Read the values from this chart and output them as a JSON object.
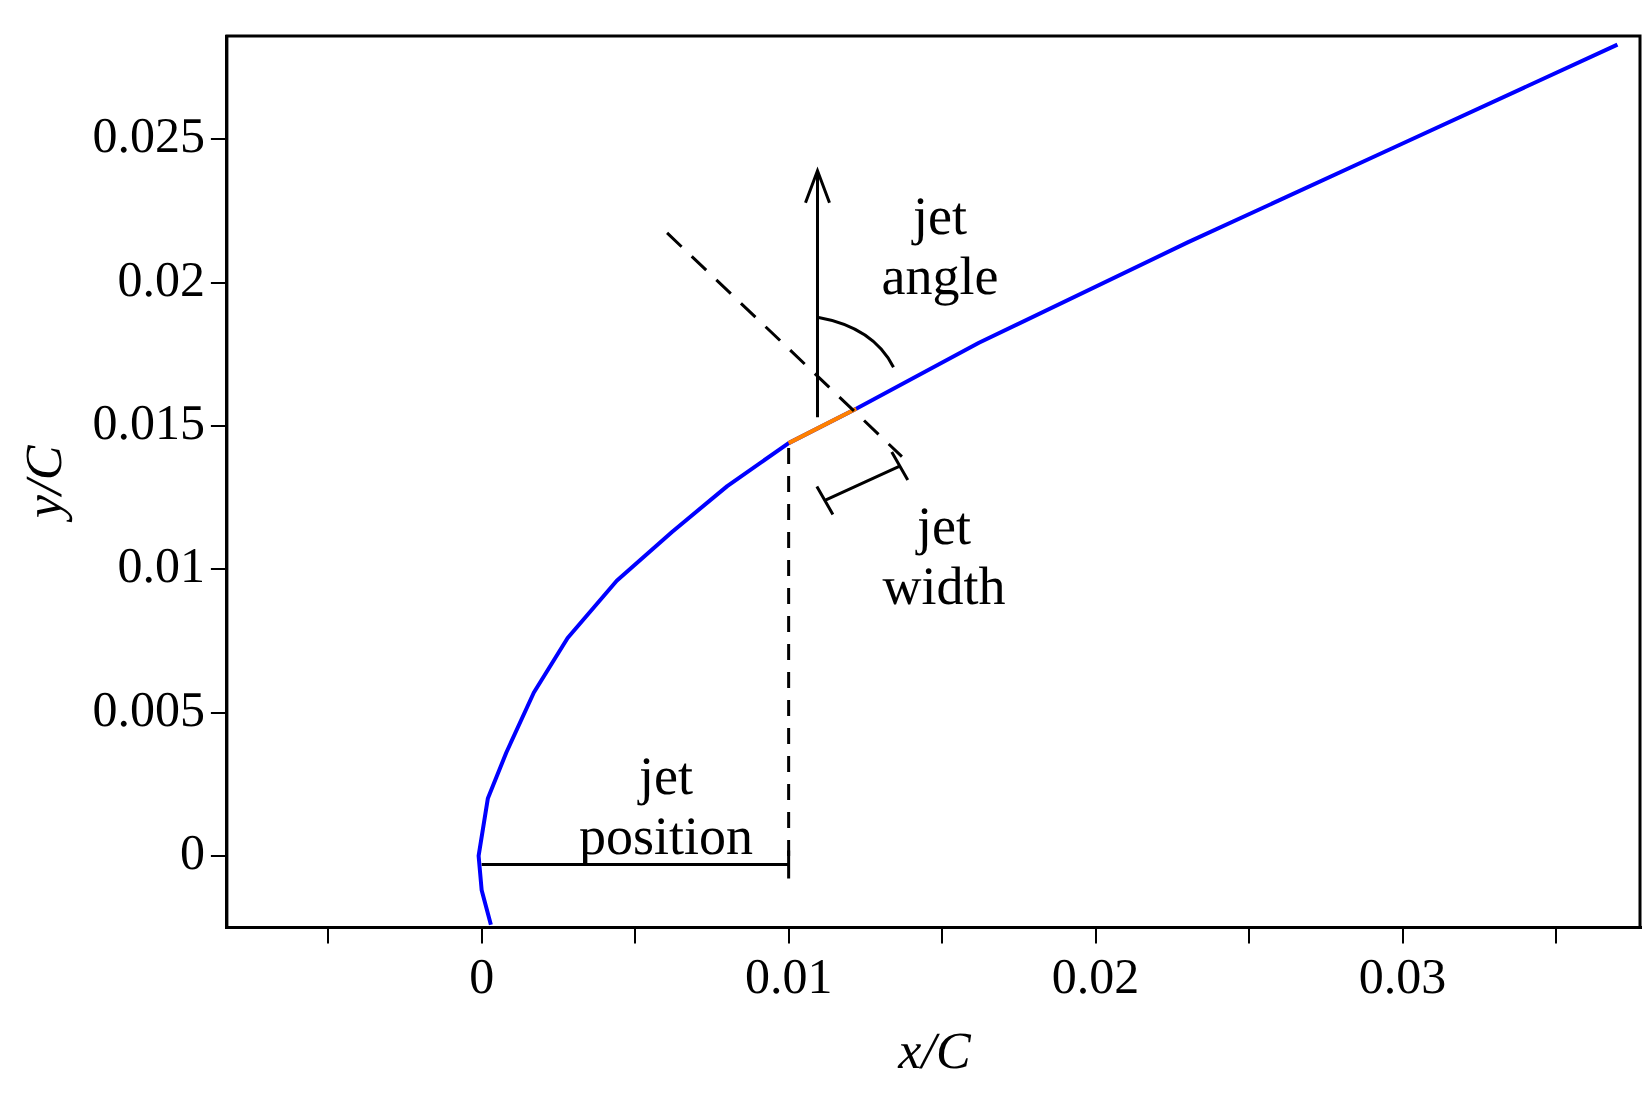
{
  "chart_data": {
    "type": "line",
    "xlabel": "x/C",
    "ylabel": "y/C",
    "xlim": [
      -0.0083,
      0.0378
    ],
    "ylim": [
      -0.0025,
      0.0286
    ],
    "xticks": [
      {
        "value": -0.005,
        "label": null
      },
      0,
      {
        "value": 0.005,
        "label": null
      },
      0.01,
      {
        "value": 0.015,
        "label": null
      },
      0.02,
      {
        "value": 0.025,
        "label": null
      },
      0.03,
      {
        "value": 0.035,
        "label": null
      }
    ],
    "yticks": [
      0,
      0.005,
      0.01,
      0.015,
      0.02,
      0.025
    ],
    "grid": false,
    "legend": false,
    "marker": "none",
    "line_style": "solid",
    "series": [
      {
        "color": "#0000ff",
        "x": [
          0.0003,
          0.0,
          -0.0001,
          0.0002,
          0.0008,
          0.0017,
          0.0028,
          0.0044,
          0.0062,
          0.008,
          0.01,
          0.0122,
          0.0162,
          0.023,
          0.0297,
          0.037
        ],
        "values": [
          -0.0024,
          -0.0012,
          0.0,
          0.002,
          0.0036,
          0.0057,
          0.0076,
          0.0096,
          0.0113,
          0.0129,
          0.0144,
          0.0156,
          0.0179,
          0.0214,
          0.0247,
          0.0283
        ]
      },
      {
        "color": "#ff8000",
        "x": [
          0.01,
          0.0111,
          0.0122
        ],
        "values": [
          0.0144,
          0.015,
          0.0156
        ]
      }
    ],
    "annotations": [
      "jet angle",
      "jet width",
      {
        "text": "jet position",
        "x": 0.01,
        "y": 0.0144
      }
    ]
  }
}
